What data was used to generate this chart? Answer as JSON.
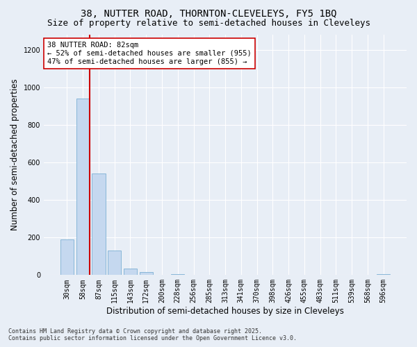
{
  "title_line1": "38, NUTTER ROAD, THORNTON-CLEVELEYS, FY5 1BQ",
  "title_line2": "Size of property relative to semi-detached houses in Cleveleys",
  "xlabel": "Distribution of semi-detached houses by size in Cleveleys",
  "ylabel": "Number of semi-detached properties",
  "categories": [
    "30sqm",
    "58sqm",
    "87sqm",
    "115sqm",
    "143sqm",
    "172sqm",
    "200sqm",
    "228sqm",
    "256sqm",
    "285sqm",
    "313sqm",
    "341sqm",
    "370sqm",
    "398sqm",
    "426sqm",
    "455sqm",
    "483sqm",
    "511sqm",
    "539sqm",
    "568sqm",
    "596sqm"
  ],
  "values": [
    190,
    940,
    540,
    130,
    35,
    15,
    0,
    5,
    0,
    0,
    0,
    0,
    0,
    0,
    0,
    0,
    0,
    0,
    0,
    0,
    5
  ],
  "bar_color": "#c5d8ef",
  "bar_edge_color": "#7bafd4",
  "vline_x": 2.0,
  "vline_color": "#cc0000",
  "annotation_text": "38 NUTTER ROAD: 82sqm\n← 52% of semi-detached houses are smaller (955)\n47% of semi-detached houses are larger (855) →",
  "annotation_box_facecolor": "#ffffff",
  "annotation_box_edgecolor": "#cc0000",
  "ylim": [
    0,
    1280
  ],
  "yticks": [
    0,
    200,
    400,
    600,
    800,
    1000,
    1200
  ],
  "background_color": "#e8eef6",
  "grid_color": "#ffffff",
  "footnote": "Contains HM Land Registry data © Crown copyright and database right 2025.\nContains public sector information licensed under the Open Government Licence v3.0.",
  "title_fontsize": 10,
  "subtitle_fontsize": 9,
  "axis_label_fontsize": 8.5,
  "tick_fontsize": 7,
  "annotation_fontsize": 7.5,
  "footnote_fontsize": 6
}
